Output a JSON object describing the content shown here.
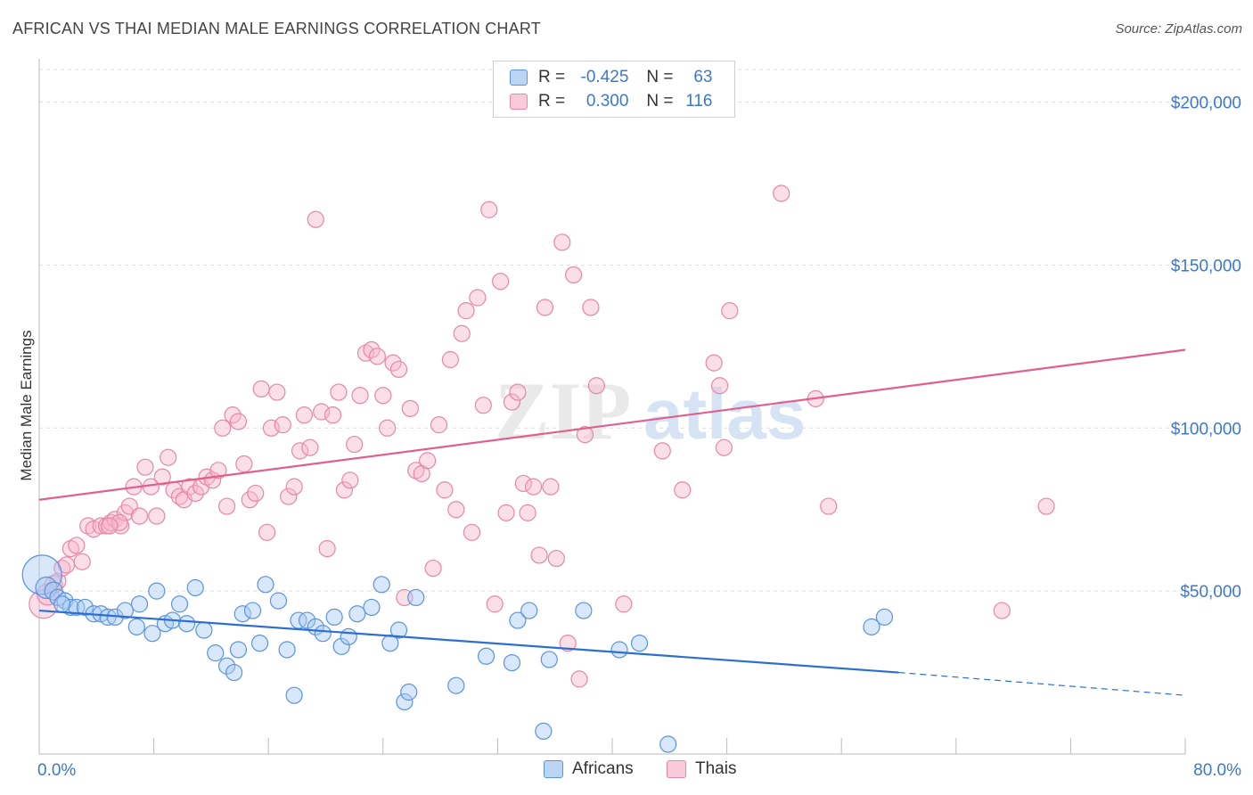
{
  "title": "AFRICAN VS THAI MEDIAN MALE EARNINGS CORRELATION CHART",
  "source": "Source: ZipAtlas.com",
  "watermark": {
    "zip": "ZIP",
    "atlas": "atlas"
  },
  "legend": {
    "rows": [
      {
        "r_label": "R =",
        "r_value": "-0.425",
        "n_label": "N =",
        "n_value": "63"
      },
      {
        "r_label": "R =",
        "r_value": "0.300",
        "n_label": "N =",
        "n_value": "116"
      }
    ]
  },
  "bottom_legend": {
    "africans": "Africans",
    "thais": "Thais"
  },
  "colors": {
    "africans_fill": "#a9c9f2",
    "africans_stroke": "#5a94dd",
    "africans_line": "#2d6fd1",
    "thais_fill": "#f6b9cd",
    "thais_stroke": "#e886a8",
    "thais_line": "#e0608d",
    "tick": "#3b78d0",
    "grid": "#dddddd"
  },
  "chart_data": {
    "type": "scatter",
    "title": "AFRICAN VS THAI MEDIAN MALE EARNINGS CORRELATION CHART",
    "xlabel": "",
    "ylabel": "Median Male Earnings",
    "xlim": [
      0,
      80
    ],
    "ylim": [
      0,
      210000
    ],
    "x_tick_labels": {
      "left": "0.0%",
      "right": "80.0%"
    },
    "y_ticks": [
      {
        "value": 50000,
        "label": "$50,000"
      },
      {
        "value": 100000,
        "label": "$100,000"
      },
      {
        "value": 150000,
        "label": "$150,000"
      },
      {
        "value": 200000,
        "label": "$200,000"
      }
    ],
    "series": [
      {
        "name": "Africans",
        "r": -0.425,
        "n": 63,
        "trend": {
          "x0": 0,
          "y0": 44000,
          "x_solid_end": 60,
          "y_solid_end": 25000,
          "x1": 80,
          "y1": 18000
        },
        "points": [
          {
            "x": 0.2,
            "y": 55000,
            "s": 22
          },
          {
            "x": 0.5,
            "y": 51000,
            "s": 12
          },
          {
            "x": 1.0,
            "y": 50000,
            "s": 10
          },
          {
            "x": 1.3,
            "y": 48000,
            "s": 9
          },
          {
            "x": 1.8,
            "y": 47000,
            "s": 9
          },
          {
            "x": 2.2,
            "y": 45000,
            "s": 9
          },
          {
            "x": 2.6,
            "y": 45000,
            "s": 9
          },
          {
            "x": 3.2,
            "y": 45000,
            "s": 9
          },
          {
            "x": 3.8,
            "y": 43000,
            "s": 9
          },
          {
            "x": 4.3,
            "y": 43000,
            "s": 9
          },
          {
            "x": 4.8,
            "y": 42000,
            "s": 9
          },
          {
            "x": 5.3,
            "y": 42000,
            "s": 9
          },
          {
            "x": 6.0,
            "y": 44000,
            "s": 9
          },
          {
            "x": 6.8,
            "y": 39000,
            "s": 9
          },
          {
            "x": 7.0,
            "y": 46000,
            "s": 9
          },
          {
            "x": 7.9,
            "y": 37000,
            "s": 9
          },
          {
            "x": 8.2,
            "y": 50000,
            "s": 9
          },
          {
            "x": 8.8,
            "y": 40000,
            "s": 9
          },
          {
            "x": 9.3,
            "y": 41000,
            "s": 9
          },
          {
            "x": 9.8,
            "y": 46000,
            "s": 9
          },
          {
            "x": 10.3,
            "y": 40000,
            "s": 9
          },
          {
            "x": 10.9,
            "y": 51000,
            "s": 9
          },
          {
            "x": 11.5,
            "y": 38000,
            "s": 9
          },
          {
            "x": 12.3,
            "y": 31000,
            "s": 9
          },
          {
            "x": 13.1,
            "y": 27000,
            "s": 9
          },
          {
            "x": 13.6,
            "y": 25000,
            "s": 9
          },
          {
            "x": 13.9,
            "y": 32000,
            "s": 9
          },
          {
            "x": 14.2,
            "y": 43000,
            "s": 9
          },
          {
            "x": 14.9,
            "y": 44000,
            "s": 9
          },
          {
            "x": 15.4,
            "y": 34000,
            "s": 9
          },
          {
            "x": 15.8,
            "y": 52000,
            "s": 9
          },
          {
            "x": 16.7,
            "y": 47000,
            "s": 9
          },
          {
            "x": 17.3,
            "y": 32000,
            "s": 9
          },
          {
            "x": 17.8,
            "y": 18000,
            "s": 9
          },
          {
            "x": 18.1,
            "y": 41000,
            "s": 9
          },
          {
            "x": 18.7,
            "y": 41000,
            "s": 9
          },
          {
            "x": 19.3,
            "y": 39000,
            "s": 9
          },
          {
            "x": 19.8,
            "y": 37000,
            "s": 9
          },
          {
            "x": 20.6,
            "y": 42000,
            "s": 9
          },
          {
            "x": 21.1,
            "y": 33000,
            "s": 9
          },
          {
            "x": 21.6,
            "y": 36000,
            "s": 9
          },
          {
            "x": 22.2,
            "y": 43000,
            "s": 9
          },
          {
            "x": 23.2,
            "y": 45000,
            "s": 9
          },
          {
            "x": 23.9,
            "y": 52000,
            "s": 9
          },
          {
            "x": 24.5,
            "y": 34000,
            "s": 9
          },
          {
            "x": 25.1,
            "y": 38000,
            "s": 9
          },
          {
            "x": 25.5,
            "y": 16000,
            "s": 9
          },
          {
            "x": 25.8,
            "y": 19000,
            "s": 9
          },
          {
            "x": 26.3,
            "y": 48000,
            "s": 9
          },
          {
            "x": 29.1,
            "y": 21000,
            "s": 9
          },
          {
            "x": 31.2,
            "y": 30000,
            "s": 9
          },
          {
            "x": 33.0,
            "y": 28000,
            "s": 9
          },
          {
            "x": 33.4,
            "y": 41000,
            "s": 9
          },
          {
            "x": 34.2,
            "y": 44000,
            "s": 9
          },
          {
            "x": 35.2,
            "y": 7000,
            "s": 9
          },
          {
            "x": 35.6,
            "y": 29000,
            "s": 9
          },
          {
            "x": 38.0,
            "y": 44000,
            "s": 9
          },
          {
            "x": 40.5,
            "y": 32000,
            "s": 9
          },
          {
            "x": 41.9,
            "y": 34000,
            "s": 9
          },
          {
            "x": 43.9,
            "y": 3000,
            "s": 9
          },
          {
            "x": 58.1,
            "y": 39000,
            "s": 9
          },
          {
            "x": 59.0,
            "y": 42000,
            "s": 9
          },
          {
            "x": 1.6,
            "y": 46000,
            "s": 9
          }
        ]
      },
      {
        "name": "Thais",
        "r": 0.3,
        "n": 116,
        "trend": {
          "x0": 0,
          "y0": 78000,
          "x1": 80,
          "y1": 124000
        },
        "points": [
          {
            "x": 0.3,
            "y": 46000,
            "s": 16
          },
          {
            "x": 0.6,
            "y": 49000,
            "s": 12
          },
          {
            "x": 1.0,
            "y": 52000,
            "s": 10
          },
          {
            "x": 1.3,
            "y": 53000,
            "s": 9
          },
          {
            "x": 1.6,
            "y": 57000,
            "s": 9
          },
          {
            "x": 1.9,
            "y": 58000,
            "s": 9
          },
          {
            "x": 2.2,
            "y": 63000,
            "s": 9
          },
          {
            "x": 2.6,
            "y": 64000,
            "s": 9
          },
          {
            "x": 3.0,
            "y": 59000,
            "s": 9
          },
          {
            "x": 3.4,
            "y": 70000,
            "s": 9
          },
          {
            "x": 3.8,
            "y": 69000,
            "s": 9
          },
          {
            "x": 4.3,
            "y": 70000,
            "s": 9
          },
          {
            "x": 4.7,
            "y": 70000,
            "s": 9
          },
          {
            "x": 5.0,
            "y": 71000,
            "s": 9
          },
          {
            "x": 5.3,
            "y": 72000,
            "s": 9
          },
          {
            "x": 5.7,
            "y": 70000,
            "s": 9
          },
          {
            "x": 6.0,
            "y": 74000,
            "s": 9
          },
          {
            "x": 6.3,
            "y": 76000,
            "s": 9
          },
          {
            "x": 6.6,
            "y": 82000,
            "s": 9
          },
          {
            "x": 7.0,
            "y": 73000,
            "s": 9
          },
          {
            "x": 7.4,
            "y": 88000,
            "s": 9
          },
          {
            "x": 7.8,
            "y": 82000,
            "s": 9
          },
          {
            "x": 8.2,
            "y": 73000,
            "s": 9
          },
          {
            "x": 8.6,
            "y": 85000,
            "s": 9
          },
          {
            "x": 9.0,
            "y": 91000,
            "s": 9
          },
          {
            "x": 9.4,
            "y": 81000,
            "s": 9
          },
          {
            "x": 9.8,
            "y": 79000,
            "s": 9
          },
          {
            "x": 10.1,
            "y": 78000,
            "s": 9
          },
          {
            "x": 10.5,
            "y": 82000,
            "s": 9
          },
          {
            "x": 10.9,
            "y": 80000,
            "s": 9
          },
          {
            "x": 11.3,
            "y": 82000,
            "s": 9
          },
          {
            "x": 11.7,
            "y": 85000,
            "s": 9
          },
          {
            "x": 12.1,
            "y": 84000,
            "s": 9
          },
          {
            "x": 12.5,
            "y": 87000,
            "s": 9
          },
          {
            "x": 12.8,
            "y": 100000,
            "s": 9
          },
          {
            "x": 13.1,
            "y": 76000,
            "s": 9
          },
          {
            "x": 13.5,
            "y": 104000,
            "s": 9
          },
          {
            "x": 13.9,
            "y": 102000,
            "s": 9
          },
          {
            "x": 14.3,
            "y": 89000,
            "s": 9
          },
          {
            "x": 14.7,
            "y": 78000,
            "s": 9
          },
          {
            "x": 15.1,
            "y": 80000,
            "s": 9
          },
          {
            "x": 15.5,
            "y": 112000,
            "s": 9
          },
          {
            "x": 15.9,
            "y": 68000,
            "s": 9
          },
          {
            "x": 16.2,
            "y": 100000,
            "s": 9
          },
          {
            "x": 16.6,
            "y": 111000,
            "s": 9
          },
          {
            "x": 17.0,
            "y": 101000,
            "s": 9
          },
          {
            "x": 17.4,
            "y": 79000,
            "s": 9
          },
          {
            "x": 17.8,
            "y": 82000,
            "s": 9
          },
          {
            "x": 18.2,
            "y": 93000,
            "s": 9
          },
          {
            "x": 18.5,
            "y": 104000,
            "s": 9
          },
          {
            "x": 18.9,
            "y": 94000,
            "s": 9
          },
          {
            "x": 19.3,
            "y": 164000,
            "s": 9
          },
          {
            "x": 19.7,
            "y": 105000,
            "s": 9
          },
          {
            "x": 20.1,
            "y": 63000,
            "s": 9
          },
          {
            "x": 20.5,
            "y": 104000,
            "s": 9
          },
          {
            "x": 20.9,
            "y": 111000,
            "s": 9
          },
          {
            "x": 21.3,
            "y": 81000,
            "s": 9
          },
          {
            "x": 21.7,
            "y": 84000,
            "s": 9
          },
          {
            "x": 22.0,
            "y": 95000,
            "s": 9
          },
          {
            "x": 22.4,
            "y": 110000,
            "s": 9
          },
          {
            "x": 22.8,
            "y": 123000,
            "s": 9
          },
          {
            "x": 23.2,
            "y": 124000,
            "s": 9
          },
          {
            "x": 23.6,
            "y": 122000,
            "s": 9
          },
          {
            "x": 24.0,
            "y": 110000,
            "s": 9
          },
          {
            "x": 24.3,
            "y": 100000,
            "s": 9
          },
          {
            "x": 24.7,
            "y": 120000,
            "s": 9
          },
          {
            "x": 25.1,
            "y": 118000,
            "s": 9
          },
          {
            "x": 25.5,
            "y": 48000,
            "s": 9
          },
          {
            "x": 25.9,
            "y": 106000,
            "s": 9
          },
          {
            "x": 26.3,
            "y": 87000,
            "s": 9
          },
          {
            "x": 26.7,
            "y": 86000,
            "s": 9
          },
          {
            "x": 27.1,
            "y": 90000,
            "s": 9
          },
          {
            "x": 27.5,
            "y": 57000,
            "s": 9
          },
          {
            "x": 27.9,
            "y": 101000,
            "s": 9
          },
          {
            "x": 28.3,
            "y": 81000,
            "s": 9
          },
          {
            "x": 28.7,
            "y": 121000,
            "s": 9
          },
          {
            "x": 29.1,
            "y": 75000,
            "s": 9
          },
          {
            "x": 29.5,
            "y": 129000,
            "s": 9
          },
          {
            "x": 29.8,
            "y": 136000,
            "s": 9
          },
          {
            "x": 30.2,
            "y": 68000,
            "s": 9
          },
          {
            "x": 30.6,
            "y": 140000,
            "s": 9
          },
          {
            "x": 31.0,
            "y": 107000,
            "s": 9
          },
          {
            "x": 31.4,
            "y": 167000,
            "s": 9
          },
          {
            "x": 31.8,
            "y": 46000,
            "s": 9
          },
          {
            "x": 32.2,
            "y": 145000,
            "s": 9
          },
          {
            "x": 32.6,
            "y": 74000,
            "s": 9
          },
          {
            "x": 33.0,
            "y": 108000,
            "s": 9
          },
          {
            "x": 33.4,
            "y": 111000,
            "s": 9
          },
          {
            "x": 33.8,
            "y": 83000,
            "s": 9
          },
          {
            "x": 34.1,
            "y": 74000,
            "s": 9
          },
          {
            "x": 34.5,
            "y": 82000,
            "s": 9
          },
          {
            "x": 34.9,
            "y": 61000,
            "s": 9
          },
          {
            "x": 35.3,
            "y": 137000,
            "s": 9
          },
          {
            "x": 35.7,
            "y": 82000,
            "s": 9
          },
          {
            "x": 36.1,
            "y": 60000,
            "s": 9
          },
          {
            "x": 36.5,
            "y": 157000,
            "s": 9
          },
          {
            "x": 36.9,
            "y": 34000,
            "s": 9
          },
          {
            "x": 37.3,
            "y": 147000,
            "s": 9
          },
          {
            "x": 37.7,
            "y": 23000,
            "s": 9
          },
          {
            "x": 38.1,
            "y": 98000,
            "s": 9
          },
          {
            "x": 38.5,
            "y": 137000,
            "s": 9
          },
          {
            "x": 38.9,
            "y": 113000,
            "s": 9
          },
          {
            "x": 40.8,
            "y": 46000,
            "s": 9
          },
          {
            "x": 43.5,
            "y": 93000,
            "s": 9
          },
          {
            "x": 44.9,
            "y": 81000,
            "s": 9
          },
          {
            "x": 47.1,
            "y": 120000,
            "s": 9
          },
          {
            "x": 47.5,
            "y": 113000,
            "s": 9
          },
          {
            "x": 47.8,
            "y": 94000,
            "s": 9
          },
          {
            "x": 48.2,
            "y": 136000,
            "s": 9
          },
          {
            "x": 51.8,
            "y": 172000,
            "s": 9
          },
          {
            "x": 54.2,
            "y": 109000,
            "s": 9
          },
          {
            "x": 55.1,
            "y": 76000,
            "s": 9
          },
          {
            "x": 67.2,
            "y": 44000,
            "s": 9
          },
          {
            "x": 70.3,
            "y": 76000,
            "s": 9
          },
          {
            "x": 5.6,
            "y": 71000,
            "s": 9
          },
          {
            "x": 4.9,
            "y": 70000,
            "s": 9
          }
        ]
      }
    ]
  }
}
